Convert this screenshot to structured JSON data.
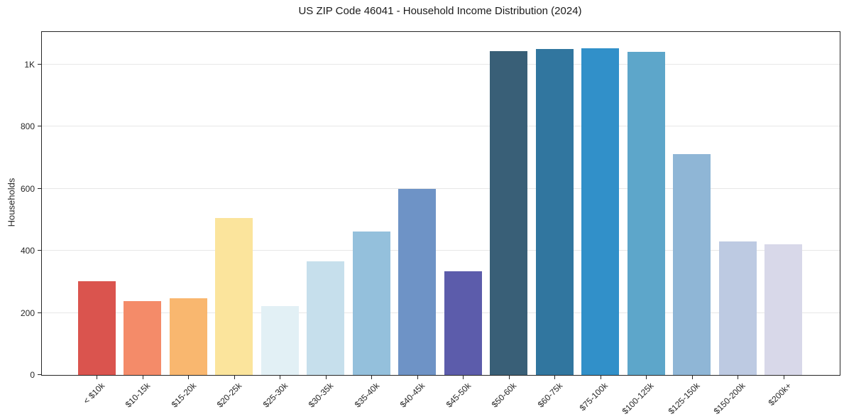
{
  "chart_data": {
    "type": "bar",
    "title": "US ZIP Code 46041 - Household Income Distribution (2024)",
    "xlabel": "",
    "ylabel": "Households",
    "categories": [
      "< $10k",
      "$10-15k",
      "$15-20k",
      "$20-25k",
      "$25-30k",
      "$30-35k",
      "$35-40k",
      "$40-45k",
      "$45-50k",
      "$50-60k",
      "$60-75k",
      "$75-100k",
      "$100-125k",
      "$125-150k",
      "$150-200k",
      "$200k+"
    ],
    "values": [
      303,
      238,
      248,
      506,
      221,
      365,
      463,
      600,
      333,
      1044,
      1050,
      1052,
      1040,
      712,
      431,
      420
    ],
    "bar_colors": [
      "#da544e",
      "#f48b69",
      "#f9b76f",
      "#fbe49c",
      "#e2f0f5",
      "#c6dfec",
      "#94c0dc",
      "#6e93c6",
      "#5c5cab",
      "#395f77",
      "#31769f",
      "#3190c9",
      "#5da6ca",
      "#8fb6d6",
      "#bdcae2",
      "#d8d8e9"
    ],
    "ylim": [
      0,
      1105
    ],
    "yticks": [
      {
        "value": 0,
        "label": "0"
      },
      {
        "value": 200,
        "label": "200"
      },
      {
        "value": 400,
        "label": "400"
      },
      {
        "value": 600,
        "label": "600"
      },
      {
        "value": 800,
        "label": "800"
      },
      {
        "value": 1000,
        "label": "1K"
      }
    ],
    "grid": "horizontal-only",
    "legend": "none"
  },
  "style": {
    "background_color": "#ffffff",
    "spine_color": "#262626",
    "grid_color": "#e7e7e7",
    "text_color": "#262626"
  }
}
